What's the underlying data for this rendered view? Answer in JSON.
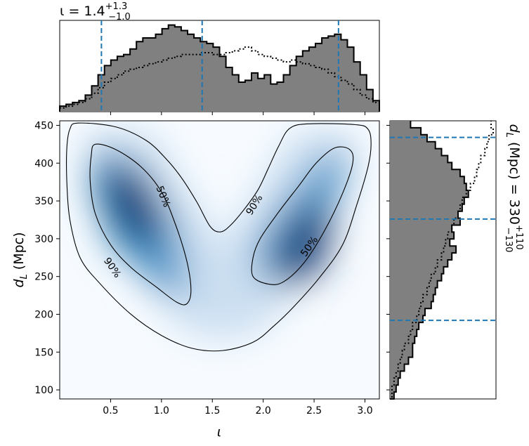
{
  "chart_data": [
    {
      "type": "heatmap",
      "panel": "joint",
      "xlabel": "ι",
      "ylabel": "d_L (Mpc)",
      "xlim": [
        0.0,
        3.1416
      ],
      "ylim": [
        88,
        456
      ],
      "xticks": [
        0.5,
        1.0,
        1.5,
        2.0,
        2.5,
        3.0
      ],
      "xtick_labels": [
        "0.5",
        "1.0",
        "1.5",
        "2.0",
        "2.5",
        "3.0"
      ],
      "yticks": [
        100,
        150,
        200,
        250,
        300,
        350,
        400,
        450
      ],
      "ytick_labels": [
        "100",
        "150",
        "200",
        "250",
        "300",
        "350",
        "400",
        "450"
      ],
      "colormap": "Blues",
      "density_modes": [
        {
          "x": 0.72,
          "y": 345
        },
        {
          "x": 2.4,
          "y": 290
        }
      ],
      "contours": [
        {
          "level": "50%",
          "regions": [
            [
              [
                0.35,
                425
              ],
              [
                0.55,
                418
              ],
              [
                0.8,
                395
              ],
              [
                1.0,
                362
              ],
              [
                1.14,
                318
              ],
              [
                1.25,
                270
              ],
              [
                1.29,
                232
              ],
              [
                1.25,
                214
              ],
              [
                1.15,
                216
              ],
              [
                0.95,
                236
              ],
              [
                0.7,
                262
              ],
              [
                0.5,
                292
              ],
              [
                0.35,
                333
              ],
              [
                0.3,
                375
              ],
              [
                0.31,
                410
              ],
              [
                0.35,
                425
              ]
            ],
            [
              [
                1.9,
                250
              ],
              [
                2.05,
                240
              ],
              [
                2.2,
                243
              ],
              [
                2.4,
                268
              ],
              [
                2.6,
                310
              ],
              [
                2.78,
                360
              ],
              [
                2.88,
                400
              ],
              [
                2.85,
                418
              ],
              [
                2.7,
                420
              ],
              [
                2.52,
                400
              ],
              [
                2.35,
                370
              ],
              [
                2.15,
                335
              ],
              [
                1.97,
                300
              ],
              [
                1.9,
                275
              ],
              [
                1.9,
                250
              ]
            ]
          ]
        },
        {
          "level": "90%",
          "regions": [
            [
              [
                0.07,
                420
              ],
              [
                0.1,
                445
              ],
              [
                0.18,
                453
              ],
              [
                0.55,
                448
              ],
              [
                0.85,
                430
              ],
              [
                1.05,
                405
              ],
              [
                1.2,
                380
              ],
              [
                1.35,
                348
              ],
              [
                1.48,
                316
              ],
              [
                1.58,
                309
              ],
              [
                1.68,
                318
              ],
              [
                1.82,
                340
              ],
              [
                1.95,
                365
              ],
              [
                2.05,
                393
              ],
              [
                2.15,
                422
              ],
              [
                2.26,
                446
              ],
              [
                2.45,
                452
              ],
              [
                2.9,
                451
              ],
              [
                3.03,
                445
              ],
              [
                3.06,
                425
              ],
              [
                3.03,
                395
              ],
              [
                2.92,
                345
              ],
              [
                2.78,
                292
              ],
              [
                2.55,
                248
              ],
              [
                2.3,
                210
              ],
              [
                2.1,
                184
              ],
              [
                1.9,
                163
              ],
              [
                1.6,
                152
              ],
              [
                1.3,
                155
              ],
              [
                1.0,
                172
              ],
              [
                0.7,
                200
              ],
              [
                0.4,
                240
              ],
              [
                0.2,
                275
              ],
              [
                0.1,
                325
              ],
              [
                0.07,
                375
              ],
              [
                0.07,
                420
              ]
            ]
          ]
        }
      ],
      "contour_labels": [
        {
          "text": "50%",
          "x": 1.02,
          "y": 356,
          "angle": 68
        },
        {
          "text": "90%",
          "x": 0.52,
          "y": 262,
          "angle": 55
        },
        {
          "text": "90%",
          "x": 1.91,
          "y": 345,
          "angle": -58
        },
        {
          "text": "50%",
          "x": 2.45,
          "y": 290,
          "angle": -55
        }
      ]
    },
    {
      "type": "histogram",
      "panel": "top",
      "title_main": "ι = 1.4",
      "title_sup": "+1.3",
      "title_sub": "−1.0",
      "xlim": [
        0.0,
        3.1416
      ],
      "bins": 50,
      "filled_series": [
        3,
        4,
        5,
        6,
        9,
        14,
        20,
        25,
        28,
        30,
        31,
        34,
        38,
        40,
        40,
        42,
        45,
        47,
        46,
        44,
        42,
        40,
        38,
        37,
        35,
        30,
        24,
        20,
        16,
        17,
        21,
        18,
        20,
        15,
        16,
        20,
        25,
        30,
        33,
        35,
        37,
        40,
        41,
        42,
        39,
        35,
        27,
        20,
        12,
        6
      ],
      "dotted_series": [
        2,
        3,
        4,
        5,
        7,
        10,
        13,
        16,
        18,
        20,
        22,
        23,
        24,
        25,
        26,
        27,
        28,
        29,
        30,
        31,
        31,
        31,
        32,
        32,
        31,
        31,
        32,
        33,
        34,
        35,
        33,
        31,
        30,
        29,
        28,
        27,
        28,
        27,
        26,
        25,
        24,
        23,
        21,
        19,
        17,
        15,
        12,
        9,
        7,
        5
      ],
      "quantile_lines": [
        0.41,
        1.4,
        2.74
      ],
      "line_color": "#1f77b4"
    },
    {
      "type": "histogram",
      "panel": "right",
      "orientation": "horizontal",
      "title_main": "d_L (Mpc) = 330",
      "title_sup": "+110",
      "title_sub": "−130",
      "ylim": [
        88,
        456
      ],
      "bins": 40,
      "filled_series": [
        2,
        3,
        4,
        5,
        7,
        9,
        11,
        11,
        12,
        13,
        14,
        16,
        17,
        20,
        21,
        22,
        23,
        25,
        26,
        28,
        30,
        32,
        29,
        31,
        30,
        34,
        33,
        35,
        36,
        38,
        37,
        36,
        34,
        30,
        28,
        25,
        22,
        18,
        15,
        10
      ],
      "dotted_series": [
        1,
        1,
        2,
        3,
        4,
        5,
        6,
        7,
        9,
        10,
        11,
        13,
        14,
        15,
        16,
        18,
        19,
        20,
        22,
        23,
        25,
        26,
        27,
        28,
        30,
        31,
        33,
        34,
        35,
        37,
        39,
        41,
        42,
        43,
        44,
        46,
        47,
        48,
        50,
        49
      ],
      "quantile_lines": [
        192,
        326,
        434
      ],
      "line_color": "#1f77b4"
    }
  ]
}
